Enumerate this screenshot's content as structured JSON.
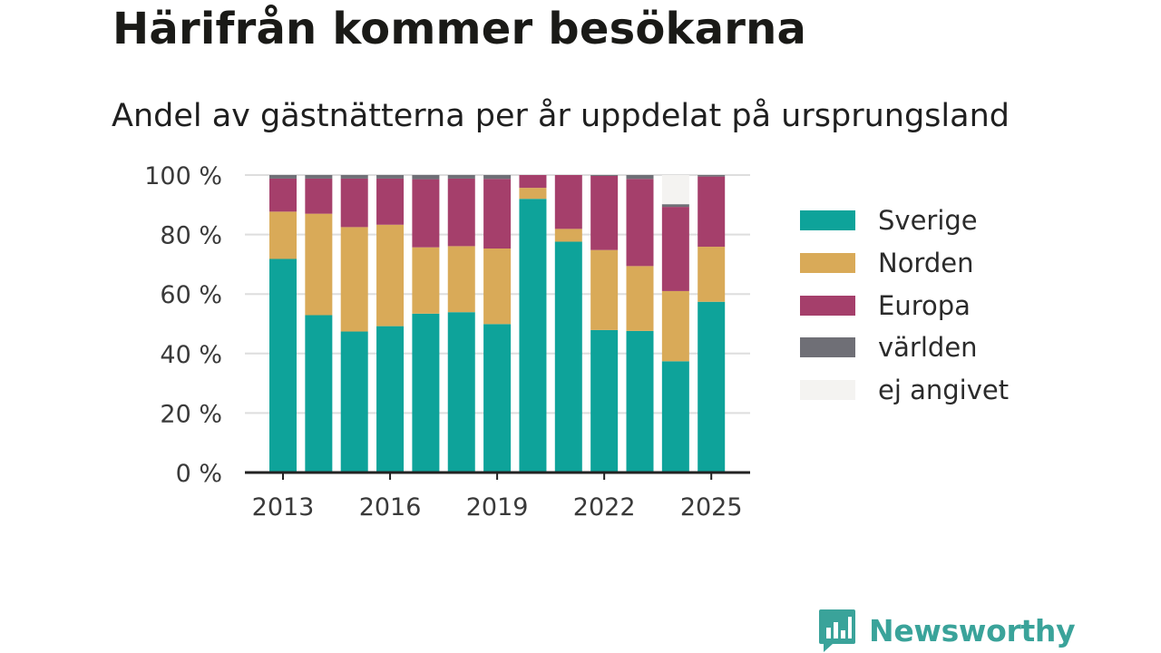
{
  "header": {
    "title": "Härifrån kommer besökarna",
    "subtitle": "Andel av gästnätterna per år uppdelat på ursprungsland"
  },
  "brand": {
    "name": "Newsworthy",
    "icon": "bar-chart-speech-bubble-icon",
    "color": "#3aa39a"
  },
  "legend": {
    "items": [
      {
        "label": "Sverige",
        "color": "#0ea39a"
      },
      {
        "label": "Norden",
        "color": "#d9aa58"
      },
      {
        "label": "Europa",
        "color": "#a53f6b"
      },
      {
        "label": "världen",
        "color": "#6f6f76"
      },
      {
        "label": "ej angivet",
        "color": "#f4f3f1"
      }
    ]
  },
  "chart_data": {
    "type": "bar",
    "stacked": true,
    "title": "Andel av gästnätterna per år uppdelat på ursprungsland",
    "xlabel": "",
    "ylabel": "",
    "ylim": [
      0,
      100
    ],
    "y_ticks": [
      "0 %",
      "20 %",
      "40 %",
      "60 %",
      "80 %",
      "100 %"
    ],
    "x_ticks": [
      "2013",
      "2016",
      "2019",
      "2022",
      "2025"
    ],
    "grid": true,
    "legend_position": "right",
    "categories": [
      "2013",
      "2014",
      "2015",
      "2016",
      "2017",
      "2018",
      "2019",
      "2020",
      "2021",
      "2022",
      "2023",
      "2024",
      "2025"
    ],
    "series": [
      {
        "name": "Sverige",
        "color": "#0ea39a",
        "values": [
          71.8,
          52.9,
          47.4,
          49.2,
          53.4,
          53.9,
          49.9,
          92.0,
          77.6,
          47.9,
          47.6,
          37.4,
          57.4
        ]
      },
      {
        "name": "Norden",
        "color": "#d9aa58",
        "values": [
          15.9,
          34.1,
          35.1,
          34.1,
          22.3,
          22.2,
          25.4,
          3.7,
          4.3,
          26.9,
          21.8,
          23.6,
          18.5
        ]
      },
      {
        "name": "Europa",
        "color": "#a53f6b",
        "values": [
          11.1,
          11.8,
          16.3,
          15.5,
          22.9,
          22.7,
          23.4,
          4.3,
          18.1,
          24.9,
          29.3,
          28.3,
          23.6
        ]
      },
      {
        "name": "världen",
        "color": "#6f6f76",
        "values": [
          1.2,
          1.2,
          1.2,
          1.2,
          1.4,
          1.2,
          1.3,
          0.0,
          0.0,
          0.3,
          1.3,
          0.9,
          0.5
        ]
      },
      {
        "name": "ej angivet",
        "color": "#f4f3f1",
        "values": [
          0,
          0,
          0,
          0,
          0,
          0,
          0,
          0,
          0,
          0,
          0,
          9.8,
          0
        ]
      }
    ]
  }
}
